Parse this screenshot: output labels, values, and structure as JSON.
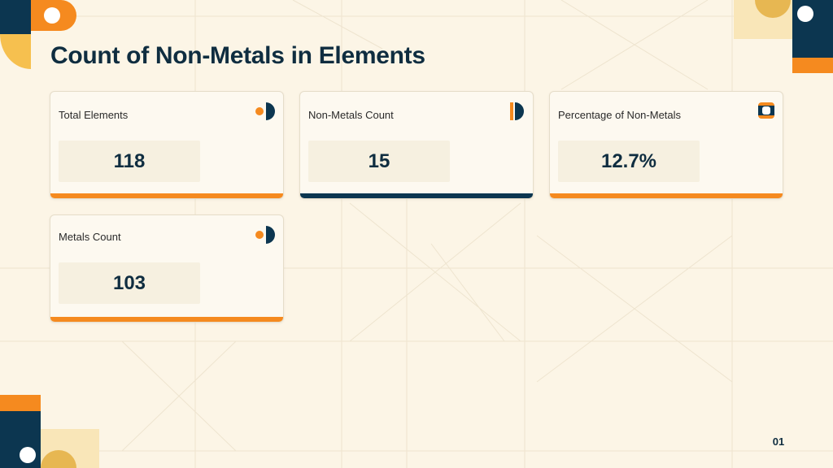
{
  "title": "Count of Non-Metals in Elements",
  "colors": {
    "orange": "#f58a1f",
    "navy": "#0c3650",
    "yellow": "#f6c04f",
    "background": "#fcf5e6"
  },
  "cards": [
    {
      "label": "Total Elements",
      "value": "118",
      "icon": "dot-half-circle-icon",
      "accent": "#f58a1f"
    },
    {
      "label": "Non-Metals Count",
      "value": "15",
      "icon": "bar-half-circle-icon",
      "accent": "#0c3650"
    },
    {
      "label": "Percentage of Non-Metals",
      "value": "12.7%",
      "icon": "rounded-square-ring-icon",
      "accent": "#f58a1f"
    },
    {
      "label": "Metals Count",
      "value": "103",
      "icon": "dot-half-circle-icon",
      "accent": "#f58a1f"
    }
  ],
  "page_number": "01"
}
